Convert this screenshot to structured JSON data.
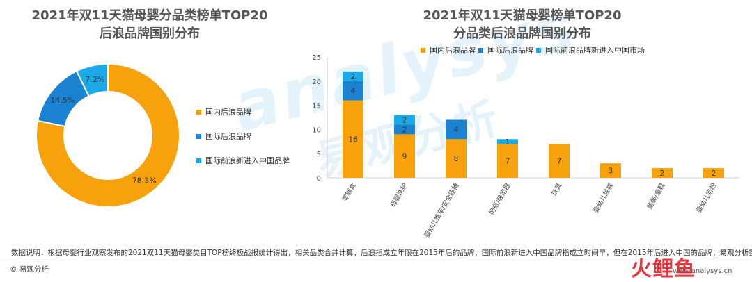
{
  "left_chart": {
    "title_line1": "2021年双11天猫母婴分品类榜单TOP20",
    "title_line2": "后浪品牌国别分布"
  },
  "right_chart": {
    "title_line1": "2021年双11天猫母婴榜单TOP20",
    "title_line2": "分品类后浪品牌国别分布"
  },
  "colors": {
    "domestic": "#F7A20C",
    "intl": "#1B82D2",
    "intl_new": "#1BA9E8"
  },
  "chart_data": [
    {
      "type": "pie",
      "title": "2021年双11天猫母婴分品类榜单TOP20 后浪品牌国别分布",
      "donut": true,
      "slices": [
        {
          "name": "国内后浪品牌",
          "value": 78.3,
          "label": "78.3%"
        },
        {
          "name": "国际后浪品牌",
          "value": 14.5,
          "label": "14.5%"
        },
        {
          "name": "国际前浪新进入中国品牌",
          "value": 7.2,
          "label": "7.2%"
        }
      ],
      "legend_position": "right"
    },
    {
      "type": "bar",
      "stacked": true,
      "title": "2021年双11天猫母婴榜单TOP20 分品类后浪品牌国别分布",
      "categories": [
        "零辅食",
        "母婴洗护",
        "婴幼儿推车/安全座椅",
        "奶瓶/吸奶器",
        "玩具",
        "婴幼儿尿裤",
        "童装/童鞋",
        "婴幼儿奶粉"
      ],
      "series": [
        {
          "name": "国内后浪品牌",
          "values": [
            16,
            9,
            8,
            7,
            7,
            3,
            2,
            2
          ]
        },
        {
          "name": "国际后浪品牌",
          "values": [
            4,
            2,
            4,
            0,
            0,
            0,
            0,
            0
          ]
        },
        {
          "name": "国际前浪品牌新进入中国市场",
          "values": [
            2,
            2,
            0,
            1,
            0,
            0,
            0,
            0
          ]
        }
      ],
      "ylim": [
        0,
        25
      ],
      "yticks": [
        0,
        5,
        10,
        15,
        20,
        25
      ],
      "grid": false,
      "legend_position": "top"
    }
  ],
  "watermark": {
    "en": "analysys",
    "cn": "易观分析"
  },
  "footer": {
    "note": "数据说明：根据母婴行业观察发布的2021双11天猫母婴类目TOP榜终极战报统计得出，相关品类合并计算，后浪指成立年限在2015年后的品牌，国际前浪新进入中国品牌指成立时间早，但在2015年后进入中国的品牌；易观分析整理",
    "copyright": "© 易观分析",
    "logo": "火鲤鱼",
    "website": "www.analysys.cn"
  }
}
